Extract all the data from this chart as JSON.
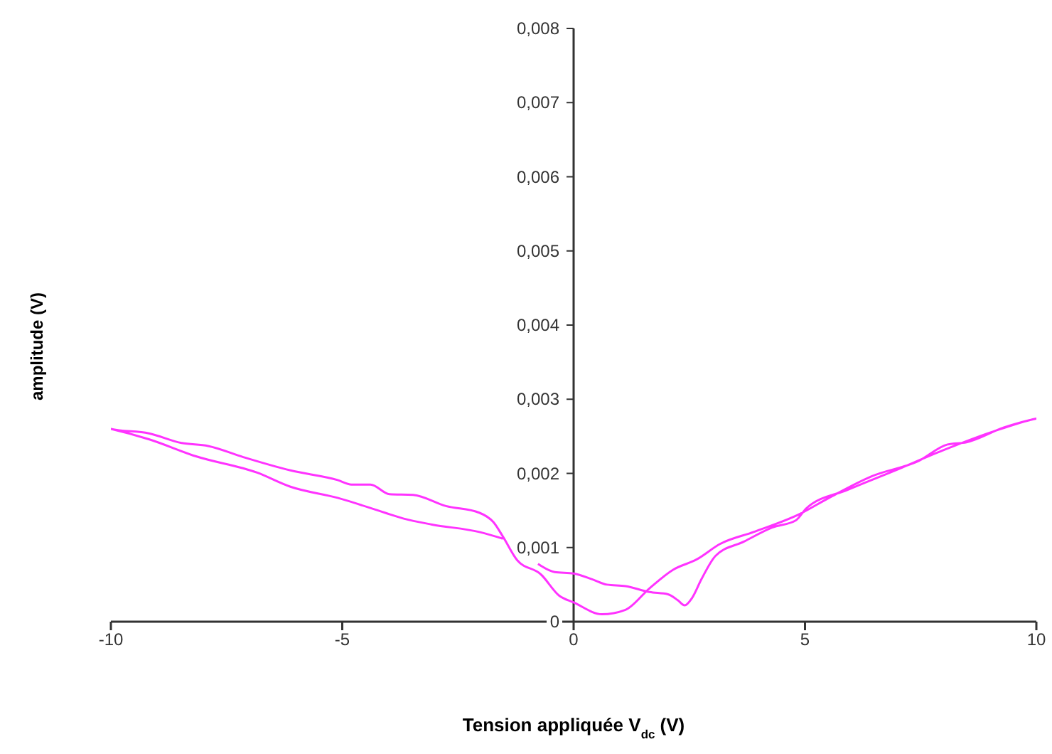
{
  "chart_data": {
    "type": "line",
    "xlabel": "Tension appliquée V$_{dc}$ (V)",
    "ylabel": "amplitude (V)",
    "xlim": [
      -10,
      10
    ],
    "xticks": [
      -10,
      -5,
      0,
      5,
      10
    ],
    "ylim": [
      0,
      0.008
    ],
    "yticks": [
      0,
      {
        "value": 0.001,
        "label": "0,001"
      },
      {
        "value": 0.002,
        "label": "0,002"
      },
      {
        "value": 0.003,
        "label": "0,003"
      },
      {
        "value": 0.004,
        "label": "0,004"
      },
      {
        "value": 0.005,
        "label": "0,005"
      },
      {
        "value": 0.006,
        "label": "0,006"
      },
      {
        "value": 0.007,
        "label": "0,007"
      },
      {
        "value": 0.008,
        "label": "0,008"
      }
    ],
    "grid": false,
    "legend": false,
    "marker": "none",
    "line_style": "solid",
    "series": [
      {
        "color": "#ff33ff",
        "x": [
          -1.53,
          -2.04,
          -3.06,
          -3.67,
          -4.08,
          -5.1,
          -6.12,
          -6.84,
          -8.16,
          -9.18,
          -10,
          -9.18,
          -8.47,
          -7.9,
          -7.14,
          -6.12,
          -5.1,
          -4.8,
          -4.39,
          -3.98,
          -3.47,
          -2.76,
          -2.04,
          -1.73,
          -1.53,
          -1.22,
          -0.71,
          -0.31,
          0,
          0.61,
          1.12,
          1.64,
          2.15,
          2.66,
          3.17,
          3.89,
          4.91,
          5.52,
          6.44,
          7.46,
          8.08,
          8.49,
          9.3,
          10,
          9.0,
          7.98,
          6.95,
          5.93,
          5.03,
          4.81,
          4.29,
          3.68,
          3.07,
          2.76,
          2.56,
          2.4,
          2.25,
          2.04,
          1.64,
          1.12,
          0.72,
          0.41,
          0,
          -0.41,
          -0.77
        ],
        "values": [
          0.00112,
          0.00121,
          0.00131,
          0.00139,
          0.00147,
          0.00167,
          0.00182,
          0.00201,
          0.00223,
          0.00246,
          0.0026,
          0.00254,
          0.00241,
          0.00237,
          0.00222,
          0.00204,
          0.00191,
          0.00185,
          0.00185,
          0.00172,
          0.00171,
          0.00156,
          0.00147,
          0.00134,
          0.00115,
          0.00083,
          0.00064,
          0.00035,
          0.00026,
          0.0001,
          0.00016,
          0.00045,
          0.0007,
          0.00084,
          0.00105,
          0.00121,
          0.00146,
          0.00167,
          0.00196,
          0.00217,
          0.00239,
          0.00242,
          0.00262,
          0.00274,
          0.00255,
          0.00231,
          0.00204,
          0.00178,
          0.00153,
          0.00137,
          0.00127,
          0.00108,
          0.00089,
          0.00057,
          0.00032,
          0.00022,
          0.00029,
          0.00037,
          0.0004,
          0.00048,
          0.0005,
          0.00057,
          0.00065,
          0.00067,
          0.00078
        ]
      }
    ]
  }
}
